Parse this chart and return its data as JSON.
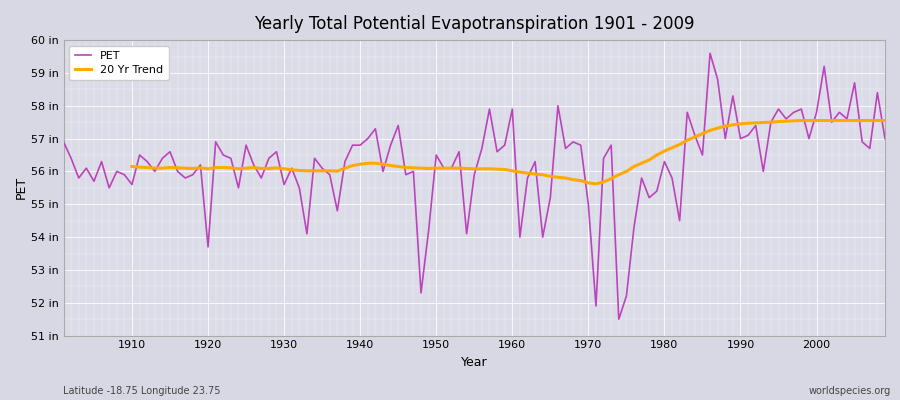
{
  "title": "Yearly Total Potential Evapotranspiration 1901 - 2009",
  "xlabel": "Year",
  "ylabel": "PET",
  "footnote_left": "Latitude -18.75 Longitude 23.75",
  "footnote_right": "worldspecies.org",
  "pet_color": "#bb44bb",
  "trend_color": "#ffaa00",
  "background_color": "#d8d8e4",
  "plot_bg_color": "#dcdce8",
  "ylim": [
    51,
    60
  ],
  "yticks": [
    51,
    52,
    53,
    54,
    55,
    56,
    57,
    58,
    59,
    60
  ],
  "ytick_labels": [
    "51 in",
    "52 in",
    "53 in",
    "54 in",
    "55 in",
    "56 in",
    "57 in",
    "58 in",
    "59 in",
    "60 in"
  ],
  "years": [
    1901,
    1902,
    1903,
    1904,
    1905,
    1906,
    1907,
    1908,
    1909,
    1910,
    1911,
    1912,
    1913,
    1914,
    1915,
    1916,
    1917,
    1918,
    1919,
    1920,
    1921,
    1922,
    1923,
    1924,
    1925,
    1926,
    1927,
    1928,
    1929,
    1930,
    1931,
    1932,
    1933,
    1934,
    1935,
    1936,
    1937,
    1938,
    1939,
    1940,
    1941,
    1942,
    1943,
    1944,
    1945,
    1946,
    1947,
    1948,
    1949,
    1950,
    1951,
    1952,
    1953,
    1954,
    1955,
    1956,
    1957,
    1958,
    1959,
    1960,
    1961,
    1962,
    1963,
    1964,
    1965,
    1966,
    1967,
    1968,
    1969,
    1970,
    1971,
    1972,
    1973,
    1974,
    1975,
    1976,
    1977,
    1978,
    1979,
    1980,
    1981,
    1982,
    1983,
    1984,
    1985,
    1986,
    1987,
    1988,
    1989,
    1990,
    1991,
    1992,
    1993,
    1994,
    1995,
    1996,
    1997,
    1998,
    1999,
    2000,
    2001,
    2002,
    2003,
    2004,
    2005,
    2006,
    2007,
    2008,
    2009
  ],
  "pet_values": [
    56.9,
    56.4,
    55.8,
    56.1,
    55.7,
    56.3,
    55.5,
    56.0,
    55.9,
    55.6,
    56.5,
    56.3,
    56.0,
    56.4,
    56.6,
    56.0,
    55.8,
    55.9,
    56.2,
    53.7,
    56.9,
    56.5,
    56.4,
    55.5,
    56.8,
    56.2,
    55.8,
    56.4,
    56.6,
    55.6,
    56.1,
    55.5,
    54.1,
    56.4,
    56.1,
    55.9,
    54.8,
    56.3,
    56.8,
    56.8,
    57.0,
    57.3,
    56.0,
    56.8,
    57.4,
    55.9,
    56.0,
    52.3,
    54.2,
    56.5,
    56.1,
    56.1,
    56.6,
    54.1,
    55.9,
    56.7,
    57.9,
    56.6,
    56.8,
    57.9,
    54.0,
    55.8,
    56.3,
    54.0,
    55.2,
    58.0,
    56.7,
    56.9,
    56.8,
    55.0,
    51.9,
    56.4,
    56.8,
    51.5,
    52.2,
    54.3,
    55.8,
    55.2,
    55.4,
    56.3,
    55.8,
    54.5,
    57.8,
    57.1,
    56.5,
    59.6,
    58.8,
    57.0,
    58.3,
    57.0,
    57.1,
    57.4,
    56.0,
    57.5,
    57.9,
    57.6,
    57.8,
    57.9,
    57.0,
    57.8,
    59.2,
    57.5,
    57.8,
    57.6,
    58.7,
    56.9,
    56.7,
    58.4,
    57.0
  ],
  "trend_values": [
    null,
    null,
    null,
    null,
    null,
    null,
    null,
    null,
    null,
    56.15,
    56.13,
    56.12,
    56.1,
    56.1,
    56.12,
    56.11,
    56.1,
    56.09,
    56.11,
    56.08,
    56.12,
    56.12,
    56.11,
    56.08,
    56.1,
    56.12,
    56.09,
    56.09,
    56.11,
    56.08,
    56.05,
    56.03,
    56.02,
    56.02,
    56.02,
    56.02,
    56.01,
    56.1,
    56.18,
    56.22,
    56.25,
    56.25,
    56.22,
    56.18,
    56.15,
    56.12,
    56.11,
    56.1,
    56.09,
    56.1,
    56.1,
    56.1,
    56.1,
    56.09,
    56.08,
    56.08,
    56.08,
    56.07,
    56.06,
    56.02,
    55.98,
    55.95,
    55.92,
    55.9,
    55.85,
    55.82,
    55.8,
    55.75,
    55.72,
    55.65,
    55.62,
    55.68,
    55.78,
    55.9,
    56.0,
    56.15,
    56.25,
    56.35,
    56.5,
    56.62,
    56.72,
    56.82,
    56.95,
    57.05,
    57.15,
    57.25,
    57.32,
    57.38,
    57.42,
    57.45,
    57.47,
    57.48,
    57.49,
    57.5,
    57.52,
    57.53,
    57.54,
    57.55,
    57.55,
    57.55,
    57.55,
    57.55,
    57.55,
    57.55,
    57.55,
    57.55,
    57.55,
    57.55,
    57.55
  ]
}
